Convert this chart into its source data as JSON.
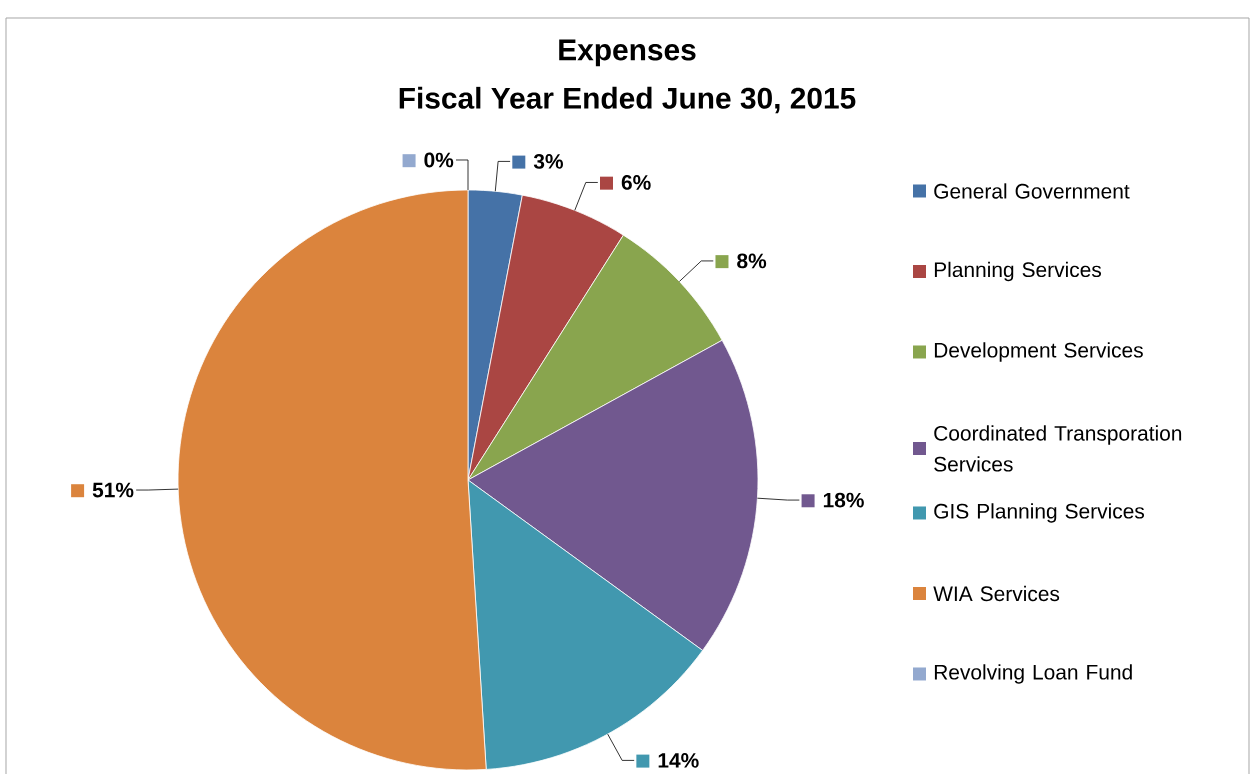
{
  "chart_data": {
    "type": "pie",
    "title": "Expenses",
    "subtitle": "Fiscal Year Ended June 30, 2015",
    "categories": [
      "General Government",
      "Planning Services",
      "Development Services",
      "Coordinated Transporation Services",
      "GIS Planning Services",
      "WIA Services",
      "Revolving Loan Fund"
    ],
    "values": [
      3,
      6,
      8,
      18,
      14,
      51,
      0
    ],
    "value_labels": [
      "3%",
      "6%",
      "8%",
      "18%",
      "14%",
      "51%",
      "0%"
    ],
    "colors": [
      "#4572a7",
      "#aa4643",
      "#89a54e",
      "#71588f",
      "#4198af",
      "#db843d",
      "#93a9cf"
    ],
    "legend": "right"
  }
}
